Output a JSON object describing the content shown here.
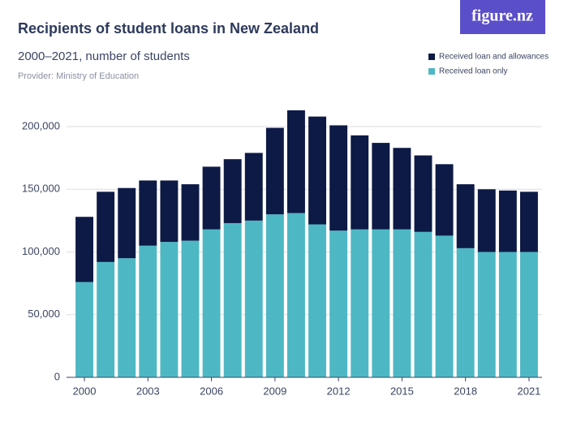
{
  "chart_data": {
    "type": "stacked-bar",
    "title": "Recipients of student loans in New Zealand",
    "subtitle": "2000–2021, number of students",
    "provider": "Provider: Ministry of Education",
    "logo": "figure.nz",
    "categories": [
      "2000",
      null,
      null,
      "2003",
      null,
      null,
      "2006",
      null,
      null,
      "2009",
      null,
      null,
      "2012",
      null,
      null,
      "2015",
      null,
      null,
      "2018",
      null,
      null,
      "2021"
    ],
    "series": [
      {
        "name": "Received loan only",
        "color": "#4db8c4",
        "values": [
          76000,
          92000,
          95000,
          105000,
          108000,
          109000,
          118000,
          123000,
          125000,
          130000,
          131000,
          122000,
          117000,
          118000,
          118000,
          118000,
          116000,
          113000,
          103000,
          100000,
          100000,
          100000
        ]
      },
      {
        "name": "Received loan and allowances",
        "color": "#0d1a45",
        "values": [
          52000,
          56000,
          56000,
          52000,
          49000,
          45000,
          50000,
          51000,
          54000,
          69000,
          82000,
          86000,
          84000,
          75000,
          69000,
          65000,
          61000,
          57000,
          51000,
          50000,
          49000,
          48000
        ]
      }
    ],
    "ylim": [
      0,
      220000
    ],
    "yticks": [
      0,
      {
        "value": 50000,
        "label": "50,000"
      },
      {
        "value": 100000,
        "label": "100,000"
      },
      {
        "value": 150000,
        "label": "150,000"
      },
      {
        "value": 200000,
        "label": "200,000"
      }
    ],
    "grid": true
  }
}
